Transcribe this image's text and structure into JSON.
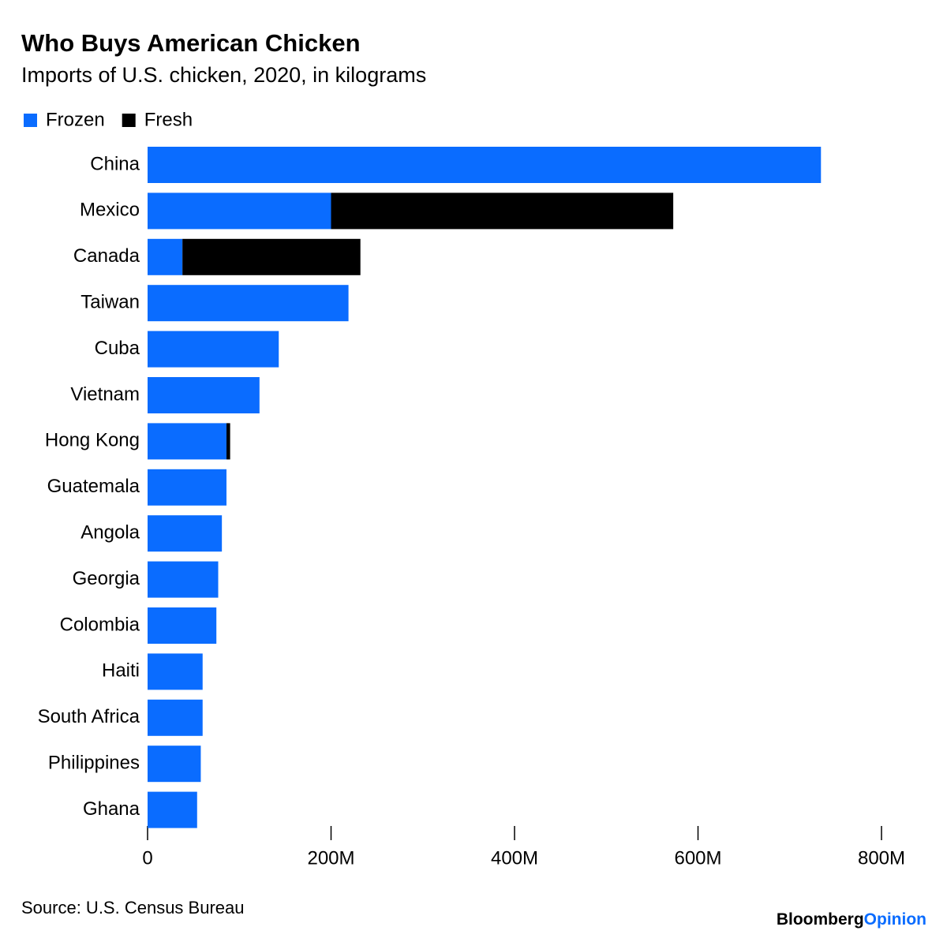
{
  "chart_data": {
    "type": "hbar-stacked",
    "title": "Who Buys American Chicken",
    "subtitle": "Imports of U.S. chicken, 2020, in kilograms",
    "categories": [
      "China",
      "Mexico",
      "Canada",
      "Taiwan",
      "Cuba",
      "Vietnam",
      "Hong Kong",
      "Guatemala",
      "Angola",
      "Georgia",
      "Colombia",
      "Haiti",
      "South Africa",
      "Philippines",
      "Ghana"
    ],
    "series": [
      {
        "name": "Frozen",
        "color": "#0a6cff",
        "values": [
          734000000,
          200000000,
          38000000,
          219000000,
          143000000,
          122000000,
          86000000,
          86000000,
          81000000,
          77000000,
          75000000,
          60000000,
          60000000,
          58000000,
          54000000
        ]
      },
      {
        "name": "Fresh",
        "color": "#000000",
        "values": [
          0,
          373000000,
          194000000,
          0,
          0,
          0,
          4000000,
          0,
          0,
          0,
          0,
          0,
          0,
          0,
          0
        ]
      }
    ],
    "xlim": [
      0,
      800000000
    ],
    "xticks": [
      0,
      {
        "value": 200000000,
        "label": "200M"
      },
      {
        "value": 400000000,
        "label": "400M"
      },
      {
        "value": 600000000,
        "label": "600M"
      },
      {
        "value": 800000000,
        "label": "800M"
      }
    ],
    "source": "Source: U.S. Census Bureau",
    "logo": {
      "brand": "Bloomberg",
      "product": "Opinion"
    }
  }
}
